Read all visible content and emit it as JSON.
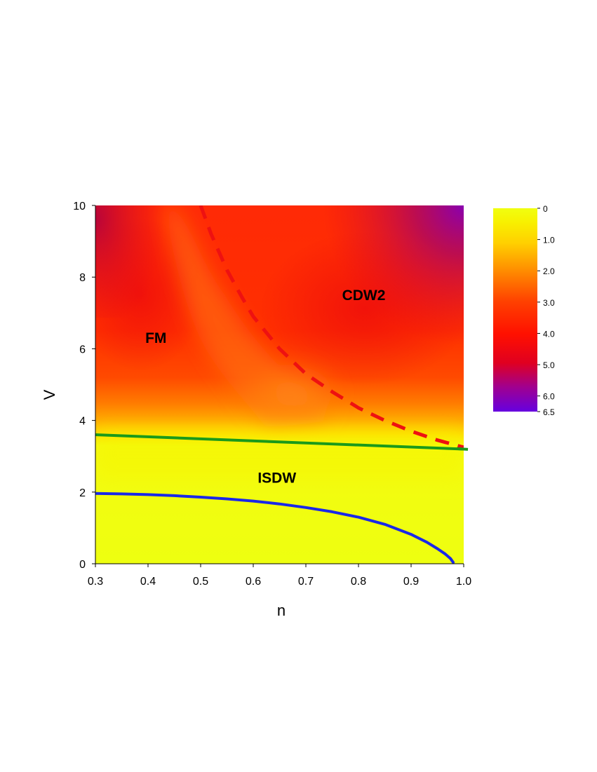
{
  "chart_data": {
    "type": "heatmap",
    "xlabel": "n",
    "ylabel": "V",
    "xlim": [
      0.3,
      1.0
    ],
    "ylim": [
      0,
      10
    ],
    "xticks": [
      "0.3",
      "0.4",
      "0.5",
      "0.6",
      "0.7",
      "0.8",
      "0.9",
      "1.0"
    ],
    "yticks": [
      "0",
      "2",
      "4",
      "6",
      "8",
      "10"
    ],
    "grid": false,
    "colorbar": {
      "placement": "right",
      "range": [
        0,
        6.5
      ],
      "ticks": [
        "0",
        "1.0",
        "2.0",
        "3.0",
        "4.0",
        "5.0",
        "6.0",
        "6.5"
      ],
      "colors": [
        "#f0ff10",
        "#ffd000",
        "#ff9000",
        "#ff4000",
        "#ff1000",
        "#e00020",
        "#a00090",
        "#6600e0"
      ]
    },
    "field": {
      "description_values": "approximate intensity on colorbar scale",
      "regions": [
        {
          "label": "ISDW",
          "value_range": [
            0,
            0.5
          ]
        },
        {
          "label": "FM",
          "value_range": [
            3.0,
            4.5
          ]
        },
        {
          "label": "CDW2",
          "value_range": [
            3.5,
            5.0
          ]
        }
      ],
      "corner_max": {
        "n": 1.0,
        "V": 10,
        "value": 6.2
      }
    },
    "annotations": [
      {
        "text": "FM",
        "n": 0.415,
        "V": 6.3
      },
      {
        "text": "CDW2",
        "n": 0.81,
        "V": 7.5
      },
      {
        "text": "ISDW",
        "n": 0.645,
        "V": 2.4
      }
    ],
    "series": [
      {
        "color": "#1a28e8",
        "style": "solid",
        "x": [
          0.3,
          0.35,
          0.4,
          0.45,
          0.5,
          0.55,
          0.6,
          0.65,
          0.7,
          0.75,
          0.8,
          0.85,
          0.9,
          0.93,
          0.95,
          0.965,
          0.975,
          0.98
        ],
        "y": [
          1.96,
          1.95,
          1.93,
          1.9,
          1.86,
          1.81,
          1.75,
          1.67,
          1.57,
          1.45,
          1.3,
          1.1,
          0.82,
          0.6,
          0.42,
          0.27,
          0.14,
          0.04
        ]
      },
      {
        "color": "#1a9a1a",
        "style": "solid",
        "x": [
          0.3,
          1.0
        ],
        "y": [
          3.6,
          3.2
        ]
      },
      {
        "color": "#ee1111",
        "style": "dashed",
        "x": [
          0.5,
          0.52,
          0.55,
          0.58,
          0.6,
          0.65,
          0.7,
          0.75,
          0.8,
          0.85,
          0.9,
          0.95,
          1.0
        ],
        "y": [
          10.0,
          9.2,
          8.2,
          7.4,
          6.9,
          6.0,
          5.3,
          4.8,
          4.35,
          4.0,
          3.7,
          3.45,
          3.25
        ]
      }
    ]
  }
}
